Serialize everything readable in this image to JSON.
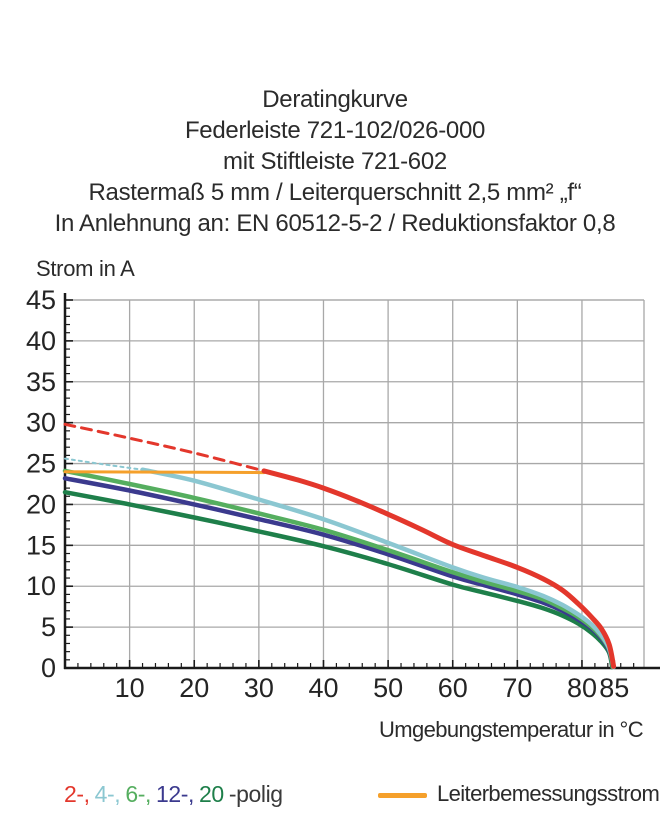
{
  "title_block": {
    "lines": [
      "Deratingkurve",
      "Federleiste 721-102/026-000",
      "mit Stiftleiste 721-602",
      "Rastermaß 5 mm / Leiterquerschnitt 2,5 mm² „f“",
      "In Anlehnung an: EN 60512-5-2 / Reduktionsfaktor 0,8"
    ]
  },
  "chart_data": {
    "type": "line",
    "title": "Deratingkurve",
    "ylabel": "Strom in A",
    "xlabel": "Umgebungstemperatur in °C",
    "xlim": [
      0,
      89.6
    ],
    "ylim": [
      0,
      45
    ],
    "x_ticks_labeled": [
      10,
      20,
      30,
      40,
      50,
      60,
      70,
      80,
      85
    ],
    "y_ticks_labeled": [
      0,
      5,
      10,
      15,
      20,
      25,
      30,
      35,
      40,
      45
    ],
    "x_gridlines": [
      10,
      20,
      30,
      40,
      50,
      60,
      70,
      80
    ],
    "y_gridlines": [
      5,
      10,
      15,
      20,
      25,
      30,
      35,
      40,
      45
    ],
    "x_minor_tick_step": 2,
    "y_minor_tick_step": 1,
    "grid_on": true,
    "colors": {
      "grid": "#a8a8a8",
      "axis": "#1a1a1a",
      "tick_text": "#242424"
    },
    "series": [
      {
        "name": "20-polig",
        "color": "#1e7f4a",
        "width": 4.5,
        "segments": [
          {
            "dash": null,
            "points": [
              [
                0,
                21.5
              ],
              [
                10,
                20.0
              ],
              [
                20,
                18.4
              ],
              [
                30,
                16.7
              ],
              [
                40,
                14.9
              ],
              [
                50,
                12.7
              ],
              [
                60,
                10.2
              ],
              [
                65,
                9.2
              ],
              [
                70,
                8.2
              ],
              [
                74,
                7.3
              ],
              [
                77,
                6.4
              ],
              [
                79.5,
                5.4
              ],
              [
                81.5,
                4.3
              ],
              [
                83,
                3.2
              ],
              [
                84.2,
                1.9
              ],
              [
                84.7,
                0.1
              ]
            ]
          }
        ]
      },
      {
        "name": "12-polig",
        "color": "#3b3a8e",
        "width": 4.5,
        "segments": [
          {
            "dash": null,
            "points": [
              [
                0,
                23.2
              ],
              [
                10,
                21.7
              ],
              [
                20,
                20.0
              ],
              [
                30,
                18.2
              ],
              [
                40,
                16.3
              ],
              [
                50,
                13.9
              ],
              [
                60,
                11.2
              ],
              [
                65,
                10.1
              ],
              [
                70,
                9.0
              ],
              [
                74,
                8.0
              ],
              [
                77,
                7.0
              ],
              [
                79.5,
                5.9
              ],
              [
                81.5,
                4.8
              ],
              [
                83,
                3.6
              ],
              [
                84.2,
                2.1
              ],
              [
                84.8,
                0.1
              ]
            ]
          }
        ]
      },
      {
        "name": "6-polig",
        "color": "#55ae5f",
        "width": 4.5,
        "segments": [
          {
            "dash": null,
            "points": [
              [
                0,
                24.1
              ],
              [
                10,
                22.5
              ],
              [
                20,
                20.8
              ],
              [
                30,
                18.9
              ],
              [
                40,
                16.9
              ],
              [
                50,
                14.4
              ],
              [
                60,
                11.7
              ],
              [
                65,
                10.5
              ],
              [
                70,
                9.4
              ],
              [
                74,
                8.4
              ],
              [
                77,
                7.3
              ],
              [
                79.5,
                6.2
              ],
              [
                81.5,
                5.0
              ],
              [
                83,
                3.8
              ],
              [
                84.2,
                2.3
              ],
              [
                84.8,
                0.1
              ]
            ]
          }
        ]
      },
      {
        "name": "4-polig",
        "color": "#8bc7d1",
        "width": 4.5,
        "segments": [
          {
            "dash": "3 4",
            "width": 2,
            "points": [
              [
                0,
                25.6
              ],
              [
                6,
                24.9
              ],
              [
                12,
                24.25
              ]
            ]
          },
          {
            "dash": null,
            "points": [
              [
                12,
                24.25
              ],
              [
                20,
                22.9
              ],
              [
                30,
                20.6
              ],
              [
                40,
                18.2
              ],
              [
                50,
                15.3
              ],
              [
                60,
                12.3
              ],
              [
                65,
                11.0
              ],
              [
                70,
                9.9
              ],
              [
                74,
                8.8
              ],
              [
                77,
                7.7
              ],
              [
                79.5,
                6.5
              ],
              [
                81.5,
                5.3
              ],
              [
                83,
                4.0
              ],
              [
                84.2,
                2.4
              ],
              [
                84.9,
                0.1
              ]
            ]
          }
        ]
      },
      {
        "name": "Leiterbemessungsstrom",
        "color": "#f5a02b",
        "width": 3,
        "segments": [
          {
            "dash": null,
            "points": [
              [
                0,
                24.0
              ],
              [
                15,
                23.95
              ],
              [
                30.8,
                23.9
              ]
            ]
          }
        ]
      },
      {
        "name": "2-polig",
        "color": "#e3372c",
        "width": 5,
        "segments": [
          {
            "dash": "10 7",
            "width": 3,
            "points": [
              [
                0,
                29.8
              ],
              [
                10,
                28.1
              ],
              [
                20,
                26.3
              ],
              [
                30.8,
                24.1
              ]
            ]
          },
          {
            "dash": null,
            "points": [
              [
                30.8,
                24.1
              ],
              [
                36,
                23.0
              ],
              [
                40,
                22.0
              ],
              [
                45,
                20.5
              ],
              [
                50,
                18.8
              ],
              [
                55,
                17.0
              ],
              [
                60,
                15.1
              ],
              [
                65,
                13.7
              ],
              [
                70,
                12.3
              ],
              [
                74,
                10.9
              ],
              [
                77,
                9.5
              ],
              [
                79.5,
                7.8
              ],
              [
                81.5,
                6.2
              ],
              [
                83,
                4.8
              ],
              [
                84.2,
                2.9
              ],
              [
                84.9,
                0.2
              ]
            ]
          }
        ]
      }
    ]
  },
  "legend": {
    "poles": [
      {
        "label": "2-,",
        "color": "#e3372c"
      },
      {
        "label": "4-,",
        "color": "#8bc7d1"
      },
      {
        "label": "6-,",
        "color": "#55ae5f"
      },
      {
        "label": "12-,",
        "color": "#3b3a8e"
      },
      {
        "label": "20",
        "color": "#1e7f4a"
      }
    ],
    "suffix": "-polig",
    "rated_current": {
      "label": "Leiterbemessungsstrom",
      "color": "#f5a02b"
    }
  }
}
